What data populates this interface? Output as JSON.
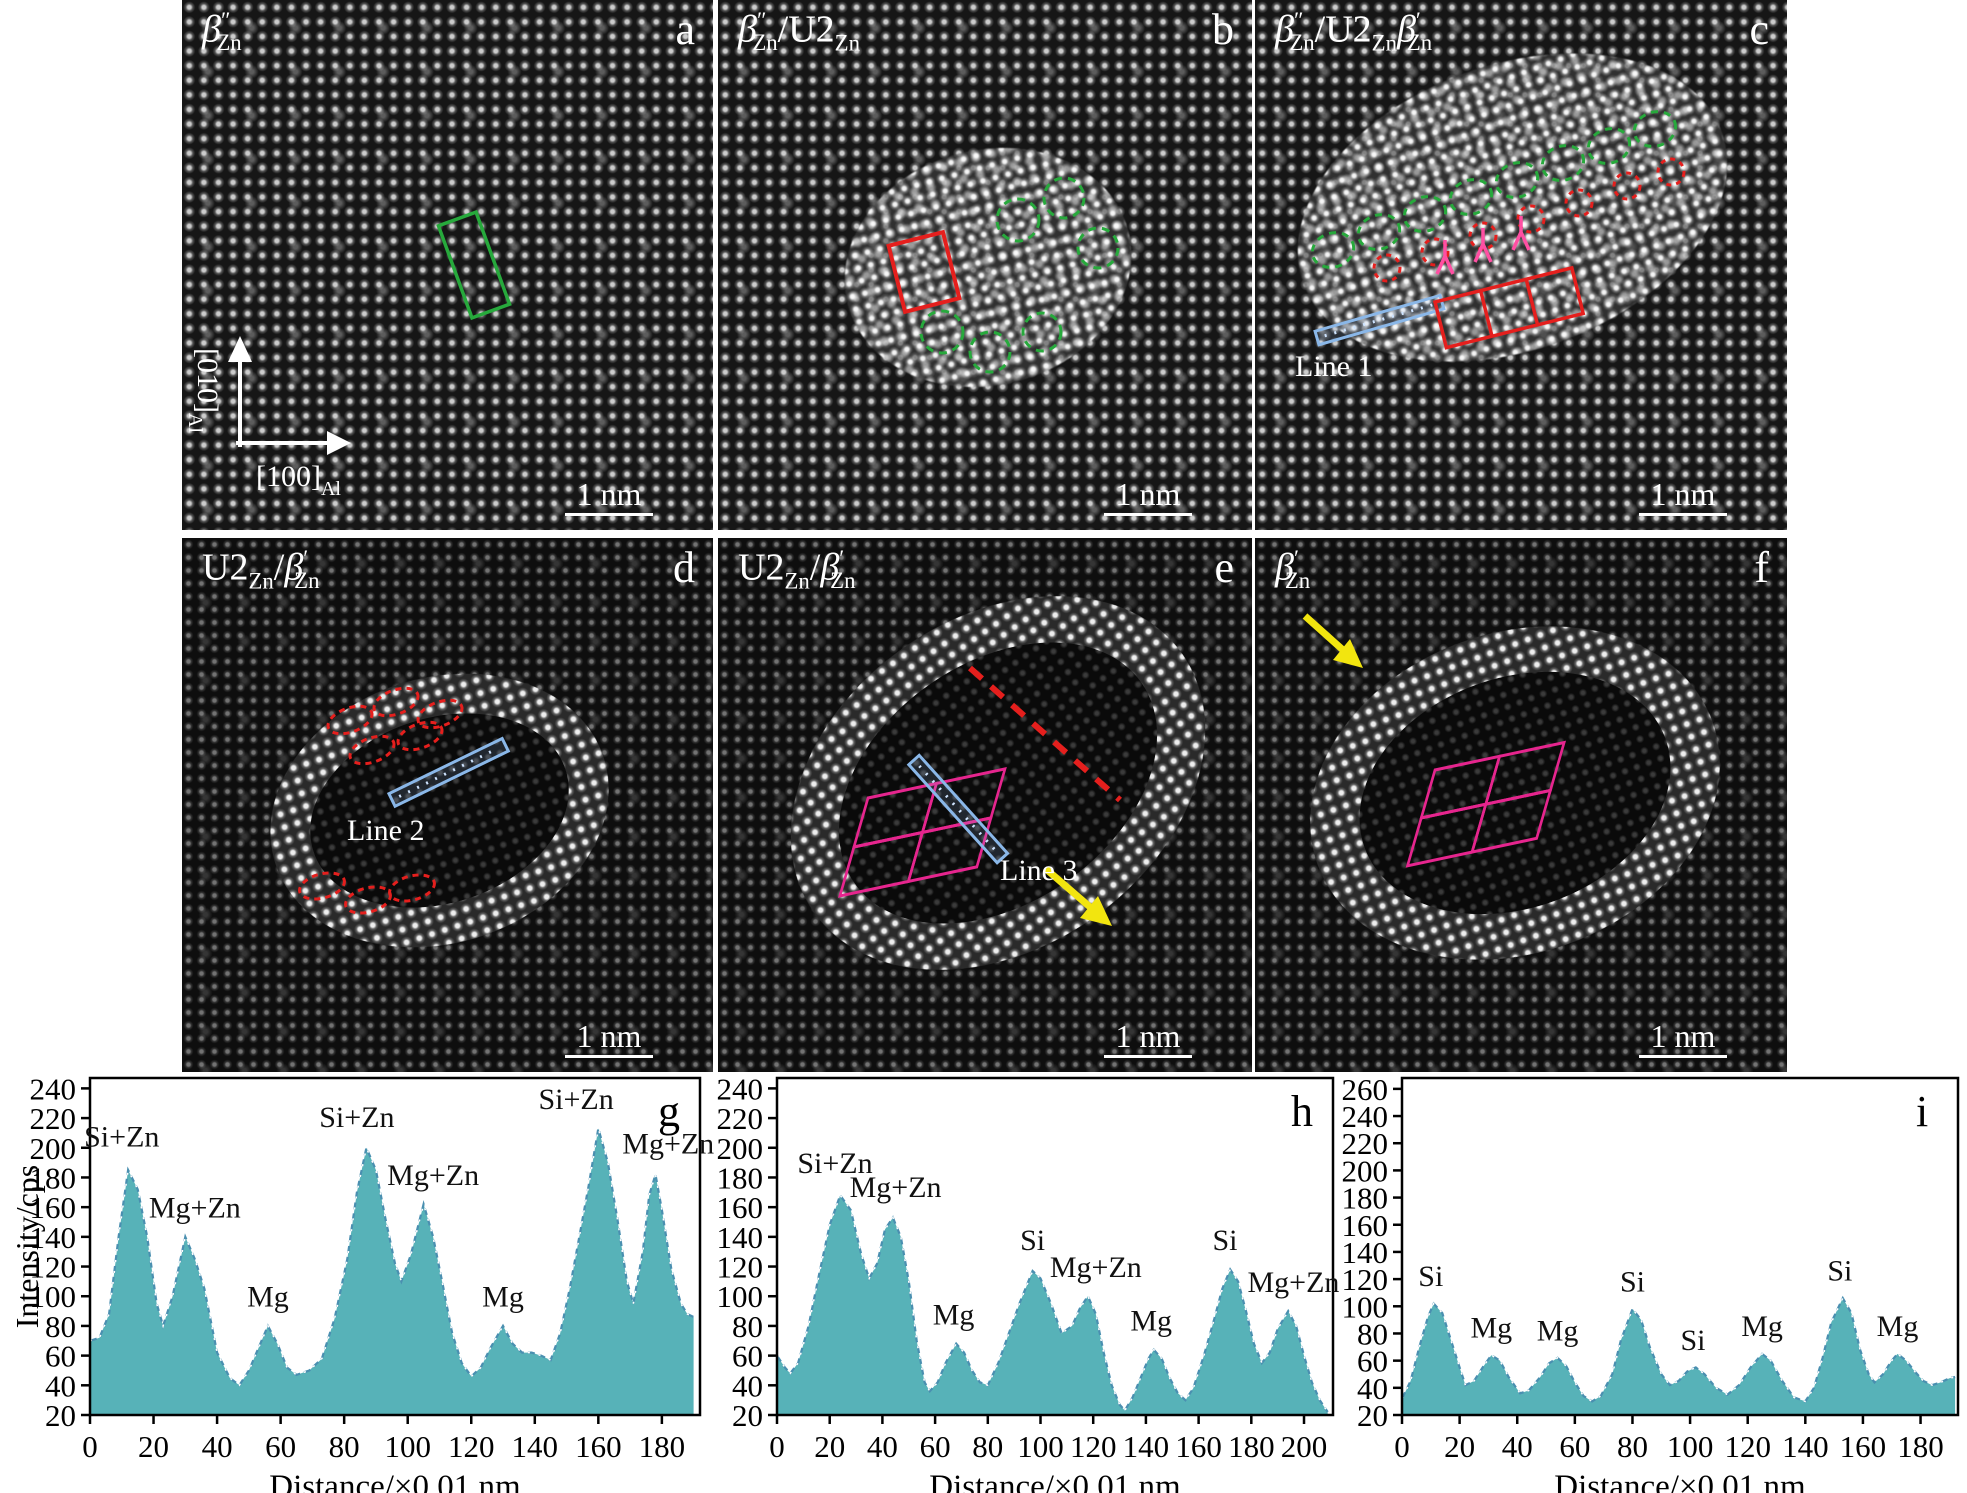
{
  "figure": {
    "background": "#ffffff"
  },
  "colors": {
    "chart_fill": "#57b2b8",
    "chart_edge": "#4a8fb0",
    "chart_edge_dash": "#ffffff",
    "annotation_green": "#27a93c",
    "annotation_red": "#e51f1d",
    "annotation_magenta": "#e6258e",
    "annotation_pink": "#ff4fa3",
    "annotation_blue": "#8ab7e8",
    "annotation_yellow": "#f2e50f",
    "text_white": "#ffffff",
    "text_black": "#000000"
  },
  "axes_legend": {
    "vertical_main": "[010]",
    "vertical_sub": "Al",
    "horizontal_main": "[100]",
    "horizontal_sub": "Al"
  },
  "panels": [
    {
      "id": "a",
      "letter": "a",
      "scale_bar": "1 nm",
      "label_tokens": [
        {
          "t": "β",
          "i": true
        },
        {
          "t": "″",
          "sup": true
        },
        {
          "t": "Zn",
          "sub": true
        }
      ]
    },
    {
      "id": "b",
      "letter": "b",
      "scale_bar": "1 nm",
      "label_tokens": [
        {
          "t": "β",
          "i": true
        },
        {
          "t": "″",
          "sup": true
        },
        {
          "t": "Zn",
          "sub": true
        },
        {
          "t": "/U2"
        },
        {
          "t": "Zn",
          "sub": true
        }
      ]
    },
    {
      "id": "c",
      "letter": "c",
      "scale_bar": "1 nm",
      "line_label": "Line 1",
      "label_tokens": [
        {
          "t": "β",
          "i": true
        },
        {
          "t": "″",
          "sup": true
        },
        {
          "t": "Zn",
          "sub": true
        },
        {
          "t": "/U2"
        },
        {
          "t": "Zn",
          "sub": true
        },
        {
          "t": "β",
          "i": true
        },
        {
          "t": "′",
          "sup": true
        },
        {
          "t": "Zn",
          "sub": true
        }
      ]
    },
    {
      "id": "d",
      "letter": "d",
      "scale_bar": "1 nm",
      "line_label": "Line 2",
      "label_tokens": [
        {
          "t": "U2"
        },
        {
          "t": "Zn",
          "sub": true
        },
        {
          "t": "/"
        },
        {
          "t": "β",
          "i": true
        },
        {
          "t": "′",
          "sup": true
        },
        {
          "t": "Zn",
          "sub": true
        }
      ]
    },
    {
      "id": "e",
      "letter": "e",
      "scale_bar": "1 nm",
      "line_label": "Line 3",
      "label_tokens": [
        {
          "t": "U2"
        },
        {
          "t": "Zn",
          "sub": true
        },
        {
          "t": "/"
        },
        {
          "t": "β",
          "i": true
        },
        {
          "t": "′",
          "sup": true
        },
        {
          "t": "Zn",
          "sub": true
        }
      ]
    },
    {
      "id": "f",
      "letter": "f",
      "scale_bar": "1 nm",
      "label_tokens": [
        {
          "t": "β",
          "i": true
        },
        {
          "t": "′",
          "sup": true
        },
        {
          "t": "Zn",
          "sub": true
        }
      ]
    }
  ],
  "chart_data": [
    {
      "type": "area",
      "letter": "g",
      "xlabel": "Distance/×0.01 nm",
      "ylabel": "Intensity/cps",
      "xlim": [
        0,
        192
      ],
      "ylim": [
        20,
        247
      ],
      "xticks": [
        0,
        20,
        40,
        60,
        80,
        100,
        120,
        140,
        160,
        180
      ],
      "yticks": [
        20,
        40,
        60,
        80,
        100,
        120,
        140,
        160,
        180,
        200,
        220,
        240
      ],
      "x": [
        0,
        3,
        6,
        9,
        12,
        15,
        18,
        21,
        23,
        26,
        30,
        33,
        36,
        40,
        44,
        47,
        50,
        53,
        56,
        59,
        62,
        65,
        69,
        73,
        77,
        81,
        84,
        87,
        90,
        93,
        96,
        98,
        101,
        105,
        108,
        111,
        114,
        117,
        120,
        123,
        126,
        130,
        133,
        136,
        139,
        142,
        145,
        148,
        151,
        154,
        157,
        160,
        163,
        166,
        169,
        171,
        174,
        176,
        178,
        180,
        183,
        186,
        188,
        190
      ],
      "y": [
        70,
        72,
        88,
        140,
        185,
        172,
        140,
        95,
        80,
        100,
        140,
        125,
        105,
        62,
        45,
        40,
        50,
        65,
        80,
        68,
        52,
        47,
        50,
        58,
        85,
        125,
        170,
        200,
        185,
        152,
        122,
        110,
        128,
        162,
        140,
        108,
        75,
        55,
        46,
        52,
        65,
        80,
        68,
        62,
        62,
        60,
        57,
        75,
        105,
        140,
        175,
        213,
        190,
        152,
        110,
        95,
        130,
        168,
        182,
        158,
        118,
        95,
        88,
        86
      ],
      "peak_labels": [
        {
          "text": "Si+Zn",
          "x": 10,
          "y": 201
        },
        {
          "text": "Mg+Zn",
          "x": 33,
          "y": 153
        },
        {
          "text": "Mg",
          "x": 56,
          "y": 93
        },
        {
          "text": "Si+Zn",
          "x": 84,
          "y": 214
        },
        {
          "text": "Mg+Zn",
          "x": 108,
          "y": 175
        },
        {
          "text": "Mg",
          "x": 130,
          "y": 93
        },
        {
          "text": "Si+Zn",
          "x": 153,
          "y": 226
        },
        {
          "text": "Mg+Zn",
          "x": 182,
          "y": 196
        }
      ]
    },
    {
      "type": "area",
      "letter": "h",
      "xlabel": "Distance/×0.01 nm",
      "ylabel": "",
      "xlim": [
        0,
        211
      ],
      "ylim": [
        20,
        247
      ],
      "xticks": [
        0,
        20,
        40,
        60,
        80,
        100,
        120,
        140,
        160,
        180,
        200
      ],
      "yticks": [
        20,
        40,
        60,
        80,
        100,
        120,
        140,
        160,
        180,
        200,
        220,
        240
      ],
      "x": [
        0,
        3,
        5,
        8,
        12,
        16,
        20,
        24,
        28,
        32,
        35,
        38,
        41,
        44,
        47,
        50,
        53,
        56,
        58,
        61,
        64,
        68,
        71,
        74,
        77,
        80,
        84,
        88,
        92,
        97,
        100,
        104,
        108,
        112,
        115,
        118,
        121,
        124,
        127,
        130,
        132,
        135,
        138,
        141,
        143,
        146,
        149,
        152,
        155,
        158,
        162,
        166,
        169,
        172,
        175,
        178,
        181,
        184,
        187,
        190,
        194,
        197,
        200,
        203,
        206,
        209
      ],
      "y": [
        60,
        52,
        48,
        55,
        80,
        115,
        148,
        168,
        158,
        128,
        112,
        122,
        145,
        153,
        140,
        110,
        70,
        42,
        36,
        42,
        55,
        68,
        62,
        50,
        42,
        40,
        55,
        75,
        95,
        117,
        112,
        95,
        75,
        80,
        92,
        100,
        88,
        62,
        40,
        27,
        23,
        32,
        45,
        58,
        64,
        58,
        45,
        35,
        30,
        38,
        60,
        85,
        105,
        118,
        110,
        90,
        68,
        55,
        62,
        78,
        90,
        80,
        60,
        42,
        30,
        22
      ],
      "peak_labels": [
        {
          "text": "Si+Zn",
          "x": 22,
          "y": 183
        },
        {
          "text": "Mg+Zn",
          "x": 45,
          "y": 167
        },
        {
          "text": "Mg",
          "x": 67,
          "y": 81
        },
        {
          "text": "Si",
          "x": 97,
          "y": 131
        },
        {
          "text": "Mg+Zn",
          "x": 121,
          "y": 113
        },
        {
          "text": "Mg",
          "x": 142,
          "y": 77
        },
        {
          "text": "Si",
          "x": 170,
          "y": 131
        },
        {
          "text": "Mg+Zn",
          "x": 196,
          "y": 103
        }
      ]
    },
    {
      "type": "area",
      "letter": "i",
      "xlabel": "Distance/×0.01 nm",
      "ylabel": "",
      "xlim": [
        0,
        193
      ],
      "ylim": [
        20,
        268
      ],
      "xticks": [
        0,
        20,
        40,
        60,
        80,
        100,
        120,
        140,
        160,
        180
      ],
      "yticks": [
        20,
        40,
        60,
        80,
        100,
        120,
        140,
        160,
        180,
        200,
        220,
        240,
        260
      ],
      "x": [
        0,
        3,
        6,
        9,
        11,
        14,
        17,
        20,
        22,
        25,
        28,
        31,
        34,
        37,
        41,
        44,
        48,
        51,
        54,
        57,
        60,
        63,
        66,
        69,
        73,
        76,
        80,
        83,
        86,
        90,
        93,
        96,
        99,
        102,
        105,
        109,
        113,
        117,
        121,
        125,
        128,
        132,
        136,
        140,
        143,
        146,
        149,
        153,
        156,
        159,
        162,
        164,
        167,
        170,
        172,
        175,
        178,
        181,
        184,
        187,
        190,
        192
      ],
      "y": [
        32,
        45,
        70,
        92,
        102,
        95,
        75,
        55,
        42,
        45,
        55,
        64,
        60,
        48,
        36,
        38,
        48,
        58,
        62,
        56,
        44,
        34,
        30,
        34,
        50,
        75,
        98,
        90,
        70,
        50,
        42,
        45,
        52,
        55,
        50,
        40,
        35,
        42,
        55,
        65,
        60,
        45,
        33,
        30,
        40,
        62,
        88,
        106,
        95,
        68,
        50,
        44,
        50,
        60,
        65,
        60,
        52,
        45,
        42,
        44,
        47,
        48
      ],
      "peak_labels": [
        {
          "text": "Si",
          "x": 10,
          "y": 115
        },
        {
          "text": "Mg",
          "x": 31,
          "y": 77
        },
        {
          "text": "Mg",
          "x": 54,
          "y": 75
        },
        {
          "text": "Si",
          "x": 80,
          "y": 111
        },
        {
          "text": "Si",
          "x": 101,
          "y": 68
        },
        {
          "text": "Mg",
          "x": 125,
          "y": 78
        },
        {
          "text": "Si",
          "x": 152,
          "y": 119
        },
        {
          "text": "Mg",
          "x": 172,
          "y": 78
        }
      ]
    }
  ]
}
